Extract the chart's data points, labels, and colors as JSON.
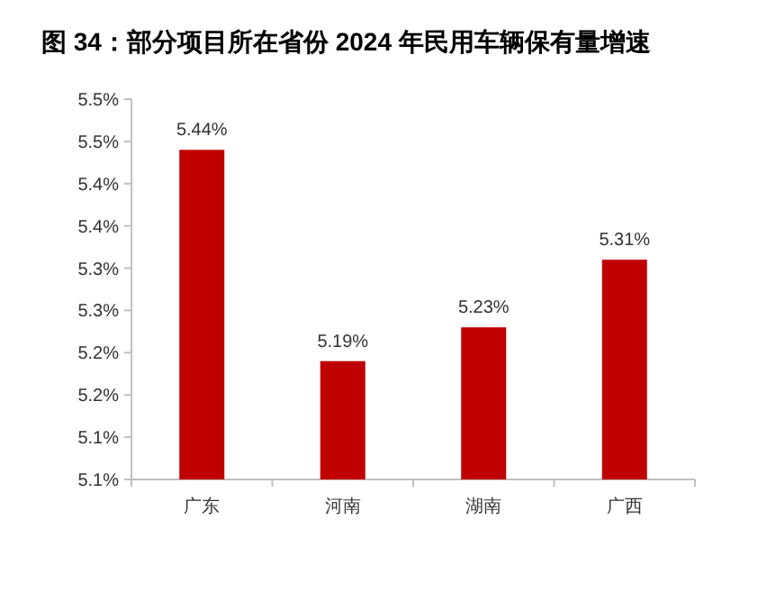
{
  "chart_data": {
    "type": "bar",
    "title": "图 34：部分项目所在省份 2024 年民用车辆保有量增速",
    "categories": [
      "广东",
      "河南",
      "湖南",
      "广西"
    ],
    "values": [
      5.44,
      5.19,
      5.23,
      5.31
    ],
    "color": "#c00000",
    "data_labels": true,
    "value_labels": [
      "5.44%",
      "5.19%",
      "5.23%",
      "5.31%"
    ],
    "ylim": [
      5.05,
      5.5
    ],
    "yticks": [
      {
        "value": 5.05,
        "label": "5.1%"
      },
      {
        "value": 5.1,
        "label": "5.1%"
      },
      {
        "value": 5.15,
        "label": "5.2%"
      },
      {
        "value": 5.2,
        "label": "5.2%"
      },
      {
        "value": 5.25,
        "label": "5.3%"
      },
      {
        "value": 5.3,
        "label": "5.3%"
      },
      {
        "value": 5.35,
        "label": "5.4%"
      },
      {
        "value": 5.4,
        "label": "5.4%"
      },
      {
        "value": 5.45,
        "label": "5.5%"
      },
      {
        "value": 5.5,
        "label": "5.5%"
      }
    ],
    "grid": false
  }
}
